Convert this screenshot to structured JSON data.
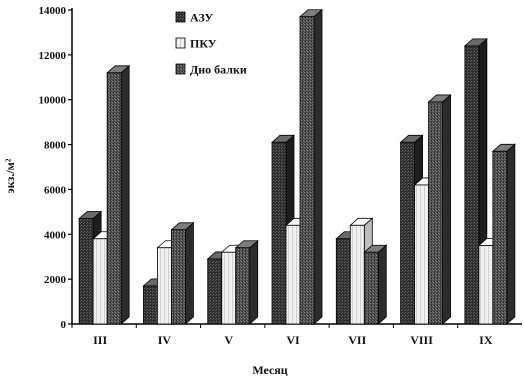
{
  "chart_data": {
    "type": "bar",
    "subtype": "3d-clustered",
    "categories": [
      "III",
      "IV",
      "V",
      "VI",
      "VII",
      "VIII",
      "IX"
    ],
    "series": [
      {
        "name": "АЗУ",
        "values": [
          4700,
          1700,
          2900,
          8100,
          3800,
          8100,
          12400
        ],
        "color": "#3a3a3a"
      },
      {
        "name": "ПКУ",
        "values": [
          3800,
          3400,
          3200,
          4400,
          4400,
          6200,
          3500
        ],
        "color": "#e6e6e6"
      },
      {
        "name": "Дно балки",
        "values": [
          11200,
          4200,
          3400,
          13700,
          3200,
          9900,
          7700
        ],
        "color": "#555555"
      }
    ],
    "ylabel": "экз./м²",
    "xlabel": "Месяц",
    "ylim": [
      0,
      14000
    ],
    "yticks": [
      0,
      2000,
      4000,
      6000,
      8000,
      10000,
      12000,
      14000
    ],
    "grid": false,
    "legend_position": "top-left"
  }
}
